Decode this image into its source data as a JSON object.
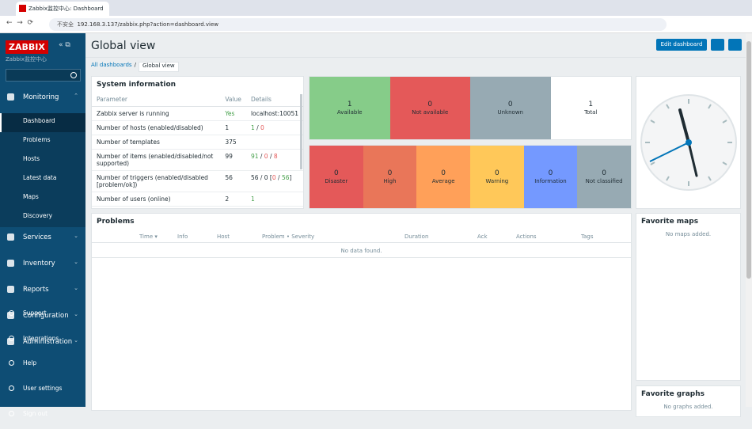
{
  "browser": {
    "tab_title": "Zabbix监控中心: Dashboard",
    "security": "不安全",
    "url": "192.168.3.137/zabbix.php?action=dashboard.view"
  },
  "sidebar": {
    "logo": "ZABBIX",
    "server_name": "Zabbix监控中心",
    "menu": [
      {
        "label": "Monitoring",
        "items": [
          "Dashboard",
          "Problems",
          "Hosts",
          "Latest data",
          "Maps",
          "Discovery"
        ]
      },
      {
        "label": "Services"
      },
      {
        "label": "Inventory"
      },
      {
        "label": "Reports"
      },
      {
        "label": "Configuration"
      },
      {
        "label": "Administration"
      }
    ],
    "footer": [
      "Support",
      "Integrations",
      "Help",
      "User settings",
      "Sign out"
    ]
  },
  "header": {
    "title": "Global view",
    "edit_button": "Edit dashboard"
  },
  "breadcrumbs": [
    "All dashboards",
    "/",
    "Global view"
  ],
  "system_information": {
    "title": "System information",
    "columns": [
      "Parameter",
      "Value",
      "Details"
    ],
    "rows": [
      {
        "parameter": "Zabbix server is running",
        "value": "Yes",
        "value_tone": "green",
        "details": [
          {
            "text": "localhost:10051"
          }
        ]
      },
      {
        "parameter": "Number of hosts (enabled/disabled)",
        "value": "1",
        "details": [
          {
            "text": "1",
            "tone": "green"
          },
          {
            "text": " / "
          },
          {
            "text": "0",
            "tone": "red"
          }
        ]
      },
      {
        "parameter": "Number of templates",
        "value": "375",
        "details": []
      },
      {
        "parameter": "Number of items (enabled/disabled/not supported)",
        "value": "99",
        "details": [
          {
            "text": "91",
            "tone": "green"
          },
          {
            "text": " / "
          },
          {
            "text": "0",
            "tone": "red"
          },
          {
            "text": " / "
          },
          {
            "text": "8",
            "tone": "red"
          }
        ]
      },
      {
        "parameter": "Number of triggers (enabled/disabled [problem/ok])",
        "value": "56",
        "details": [
          {
            "text": "56 / 0 ["
          },
          {
            "text": "0",
            "tone": "red"
          },
          {
            "text": " / "
          },
          {
            "text": "56",
            "tone": "green"
          },
          {
            "text": "]"
          }
        ]
      },
      {
        "parameter": "Number of users (online)",
        "value": "2",
        "details": [
          {
            "text": "1",
            "tone": "green"
          }
        ]
      }
    ]
  },
  "host_availability": [
    {
      "count": "1",
      "label": "Available",
      "color": "#86cc89"
    },
    {
      "count": "0",
      "label": "Not available",
      "color": "#e45959"
    },
    {
      "count": "0",
      "label": "Unknown",
      "color": "#97aab3"
    },
    {
      "count": "1",
      "label": "Total",
      "color": "#ffffff"
    }
  ],
  "problems_by_severity": [
    {
      "count": "0",
      "label": "Disaster",
      "color": "#e45959"
    },
    {
      "count": "0",
      "label": "High",
      "color": "#e97659"
    },
    {
      "count": "0",
      "label": "Average",
      "color": "#ffa059"
    },
    {
      "count": "0",
      "label": "Warning",
      "color": "#ffc859"
    },
    {
      "count": "0",
      "label": "Information",
      "color": "#7499ff"
    },
    {
      "count": "0",
      "label": "Not classified",
      "color": "#97aab3"
    }
  ],
  "problems": {
    "title": "Problems",
    "columns": [
      "Time ▾",
      "Info",
      "Host",
      "Problem • Severity",
      "Duration",
      "Ack",
      "Actions",
      "Tags"
    ],
    "empty": "No data found."
  },
  "favorite_maps": {
    "title": "Favorite maps",
    "empty": "No maps added."
  },
  "favorite_graphs": {
    "title": "Favorite graphs",
    "empty": "No graphs added."
  }
}
